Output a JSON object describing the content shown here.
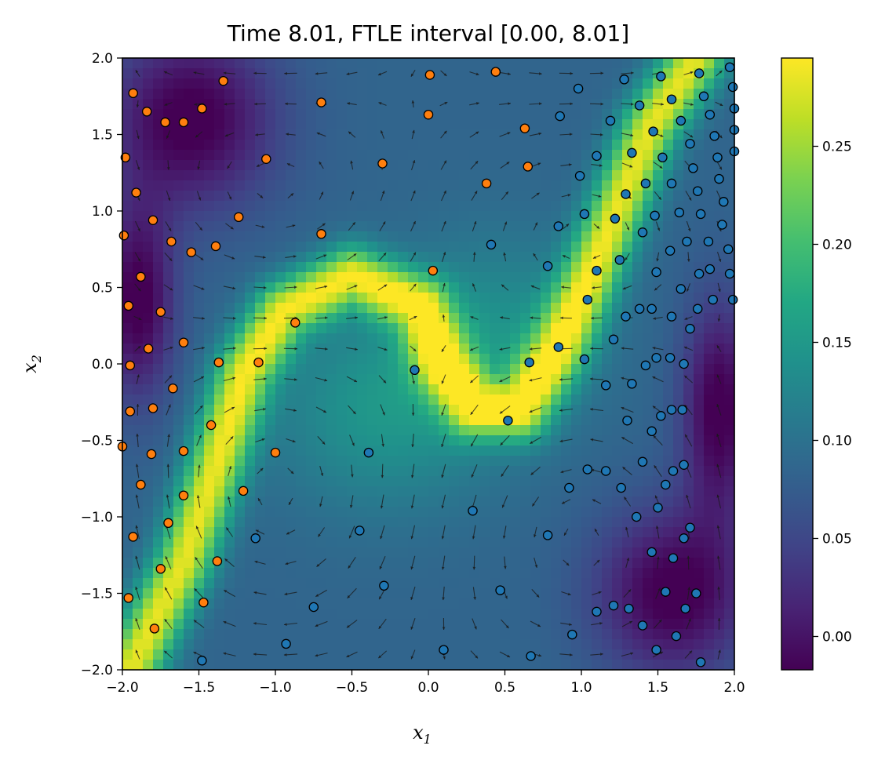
{
  "chart_data": {
    "type": "heatmap",
    "title": "Time 8.01, FTLE interval [0.00, 8.01]",
    "xlabel": "x",
    "xlabel_sub": "1",
    "ylabel": "x",
    "ylabel_sub": "2",
    "xlim": [
      -2.0,
      2.0
    ],
    "ylim": [
      -2.0,
      2.0
    ],
    "x_ticks": [
      -2.0,
      -1.5,
      -1.0,
      -0.5,
      0.0,
      0.5,
      1.0,
      1.5,
      2.0
    ],
    "x_tick_labels": [
      "−2.0",
      "−1.5",
      "−1.0",
      "−0.5",
      "0.0",
      "0.5",
      "1.0",
      "1.5",
      "2.0"
    ],
    "y_ticks": [
      -2.0,
      -1.5,
      -1.0,
      -0.5,
      0.0,
      0.5,
      1.0,
      1.5,
      2.0
    ],
    "y_tick_labels": [
      "−2.0",
      "−1.5",
      "−1.0",
      "−0.5",
      "0.0",
      "0.5",
      "1.0",
      "1.5",
      "2.0"
    ],
    "colorbar": {
      "range": [
        -0.017,
        0.295
      ],
      "ticks": [
        0.0,
        0.05,
        0.1,
        0.15,
        0.2,
        0.25
      ],
      "tick_labels": [
        "0.00",
        "0.05",
        "0.10",
        "0.15",
        "0.20",
        "0.25"
      ],
      "colormap": "viridis"
    },
    "grid": {
      "nx": 60,
      "ny": 60
    },
    "quiver": {
      "nx": 20,
      "ny": 20,
      "color": "#1a1a1a"
    },
    "scatter_series": [
      {
        "name": "orange particles",
        "color": "#ff7f0e",
        "points": [
          [
            -1.93,
            1.77
          ],
          [
            -1.84,
            1.65
          ],
          [
            -1.72,
            1.58
          ],
          [
            -1.6,
            1.58
          ],
          [
            -1.48,
            1.67
          ],
          [
            -1.34,
            1.85
          ],
          [
            -1.98,
            1.35
          ],
          [
            -1.06,
            1.34
          ],
          [
            -0.7,
            1.71
          ],
          [
            0.01,
            1.89
          ],
          [
            0.0,
            1.63
          ],
          [
            0.44,
            1.91
          ],
          [
            0.63,
            1.54
          ],
          [
            -0.3,
            1.31
          ],
          [
            0.65,
            1.29
          ],
          [
            0.38,
            1.18
          ],
          [
            -1.91,
            1.12
          ],
          [
            -1.24,
            0.96
          ],
          [
            -1.8,
            0.94
          ],
          [
            -1.99,
            0.84
          ],
          [
            -0.7,
            0.85
          ],
          [
            -1.68,
            0.8
          ],
          [
            -1.55,
            0.73
          ],
          [
            -1.39,
            0.77
          ],
          [
            -1.88,
            0.57
          ],
          [
            0.03,
            0.61
          ],
          [
            -1.96,
            0.38
          ],
          [
            -1.75,
            0.34
          ],
          [
            -0.87,
            0.27
          ],
          [
            -1.6,
            0.14
          ],
          [
            -1.83,
            0.1
          ],
          [
            -1.95,
            -0.01
          ],
          [
            -1.37,
            0.01
          ],
          [
            -1.11,
            0.01
          ],
          [
            -1.67,
            -0.16
          ],
          [
            -1.95,
            -0.31
          ],
          [
            -1.8,
            -0.29
          ],
          [
            -1.42,
            -0.4
          ],
          [
            -2.0,
            -0.54
          ],
          [
            -1.6,
            -0.57
          ],
          [
            -1.81,
            -0.59
          ],
          [
            -1.0,
            -0.58
          ],
          [
            -1.88,
            -0.79
          ],
          [
            -1.6,
            -0.86
          ],
          [
            -1.21,
            -0.83
          ],
          [
            -1.7,
            -1.04
          ],
          [
            -1.93,
            -1.13
          ],
          [
            -1.38,
            -1.29
          ],
          [
            -1.75,
            -1.34
          ],
          [
            -1.96,
            -1.53
          ],
          [
            -1.47,
            -1.56
          ],
          [
            -1.79,
            -1.73
          ]
        ]
      },
      {
        "name": "blue particles",
        "color": "#1f77b4",
        "points": [
          [
            1.77,
            1.9
          ],
          [
            1.97,
            1.94
          ],
          [
            1.28,
            1.86
          ],
          [
            1.52,
            1.88
          ],
          [
            0.98,
            1.8
          ],
          [
            1.99,
            1.81
          ],
          [
            1.59,
            1.73
          ],
          [
            1.8,
            1.75
          ],
          [
            1.38,
            1.69
          ],
          [
            2.0,
            1.67
          ],
          [
            1.84,
            1.63
          ],
          [
            0.86,
            1.62
          ],
          [
            1.19,
            1.59
          ],
          [
            1.65,
            1.59
          ],
          [
            1.47,
            1.52
          ],
          [
            1.87,
            1.49
          ],
          [
            2.0,
            1.53
          ],
          [
            1.71,
            1.44
          ],
          [
            1.1,
            1.36
          ],
          [
            1.33,
            1.38
          ],
          [
            1.53,
            1.35
          ],
          [
            1.89,
            1.35
          ],
          [
            1.73,
            1.28
          ],
          [
            2.0,
            1.39
          ],
          [
            0.99,
            1.23
          ],
          [
            1.42,
            1.18
          ],
          [
            1.9,
            1.21
          ],
          [
            1.59,
            1.18
          ],
          [
            1.29,
            1.11
          ],
          [
            1.76,
            1.13
          ],
          [
            1.93,
            1.06
          ],
          [
            1.48,
            0.97
          ],
          [
            1.22,
            0.95
          ],
          [
            1.02,
            0.98
          ],
          [
            1.64,
            0.99
          ],
          [
            1.78,
            0.98
          ],
          [
            1.92,
            0.91
          ],
          [
            0.85,
            0.9
          ],
          [
            1.4,
            0.86
          ],
          [
            0.41,
            0.78
          ],
          [
            1.69,
            0.8
          ],
          [
            1.83,
            0.8
          ],
          [
            1.58,
            0.74
          ],
          [
            1.25,
            0.68
          ],
          [
            1.96,
            0.75
          ],
          [
            0.78,
            0.64
          ],
          [
            1.1,
            0.61
          ],
          [
            1.49,
            0.6
          ],
          [
            1.77,
            0.59
          ],
          [
            1.84,
            0.62
          ],
          [
            1.97,
            0.59
          ],
          [
            1.65,
            0.49
          ],
          [
            1.04,
            0.42
          ],
          [
            1.86,
            0.42
          ],
          [
            1.99,
            0.42
          ],
          [
            1.38,
            0.36
          ],
          [
            1.46,
            0.36
          ],
          [
            1.76,
            0.36
          ],
          [
            1.29,
            0.31
          ],
          [
            1.59,
            0.31
          ],
          [
            1.71,
            0.23
          ],
          [
            1.21,
            0.16
          ],
          [
            0.85,
            0.11
          ],
          [
            1.02,
            0.03
          ],
          [
            1.49,
            0.04
          ],
          [
            1.58,
            0.04
          ],
          [
            1.42,
            -0.01
          ],
          [
            0.66,
            0.01
          ],
          [
            1.67,
            0.0
          ],
          [
            -0.09,
            -0.04
          ],
          [
            1.16,
            -0.14
          ],
          [
            1.33,
            -0.13
          ],
          [
            1.59,
            -0.3
          ],
          [
            1.66,
            -0.3
          ],
          [
            1.52,
            -0.34
          ],
          [
            0.52,
            -0.37
          ],
          [
            1.3,
            -0.37
          ],
          [
            1.46,
            -0.44
          ],
          [
            -0.39,
            -0.58
          ],
          [
            1.4,
            -0.64
          ],
          [
            1.67,
            -0.66
          ],
          [
            1.04,
            -0.69
          ],
          [
            1.16,
            -0.7
          ],
          [
            1.6,
            -0.7
          ],
          [
            0.92,
            -0.81
          ],
          [
            1.26,
            -0.81
          ],
          [
            1.55,
            -0.79
          ],
          [
            1.5,
            -0.94
          ],
          [
            0.29,
            -0.96
          ],
          [
            1.36,
            -1.0
          ],
          [
            1.71,
            -1.07
          ],
          [
            -0.45,
            -1.09
          ],
          [
            0.78,
            -1.12
          ],
          [
            1.67,
            -1.14
          ],
          [
            -1.13,
            -1.14
          ],
          [
            1.46,
            -1.23
          ],
          [
            1.6,
            -1.27
          ],
          [
            -0.29,
            -1.45
          ],
          [
            0.47,
            -1.48
          ],
          [
            1.55,
            -1.49
          ],
          [
            1.75,
            -1.5
          ],
          [
            -0.75,
            -1.59
          ],
          [
            1.68,
            -1.6
          ],
          [
            1.1,
            -1.62
          ],
          [
            1.21,
            -1.58
          ],
          [
            1.31,
            -1.6
          ],
          [
            1.4,
            -1.71
          ],
          [
            0.94,
            -1.77
          ],
          [
            1.62,
            -1.78
          ],
          [
            -0.93,
            -1.83
          ],
          [
            0.1,
            -1.87
          ],
          [
            1.49,
            -1.87
          ],
          [
            0.67,
            -1.91
          ],
          [
            -1.48,
            -1.94
          ],
          [
            1.78,
            -1.95
          ]
        ]
      }
    ]
  }
}
